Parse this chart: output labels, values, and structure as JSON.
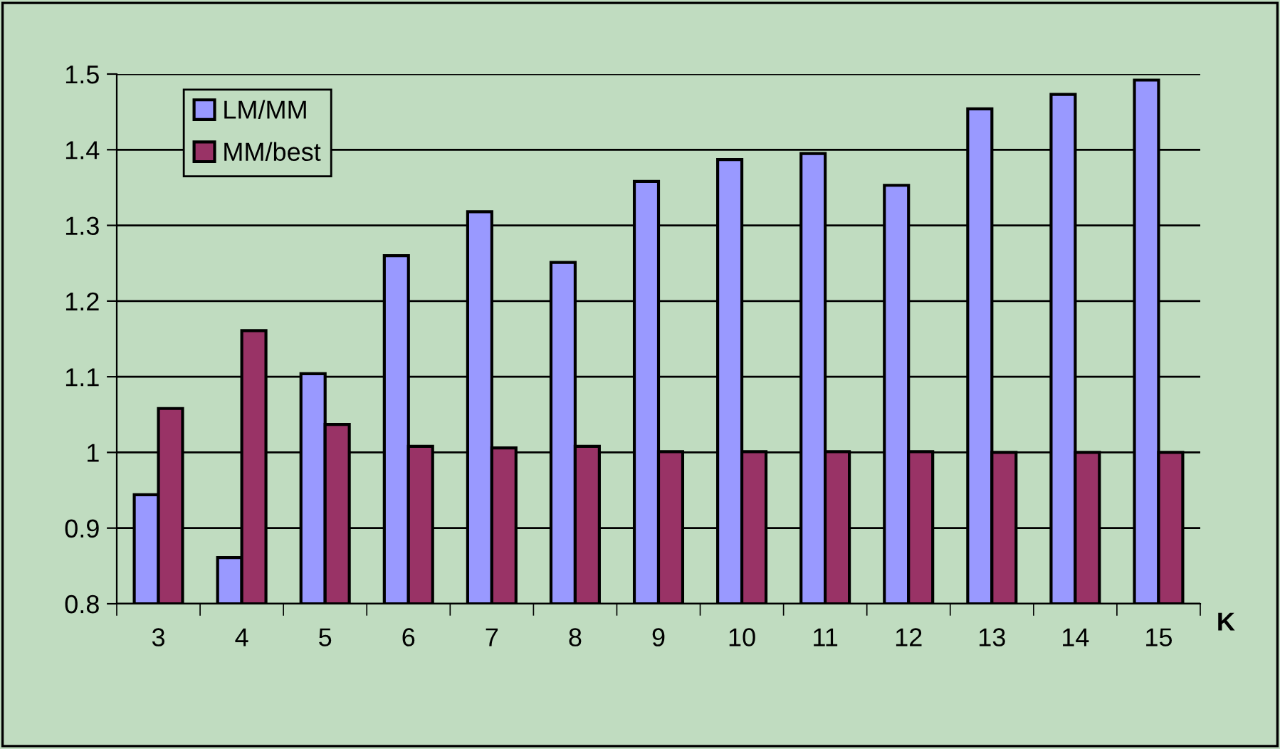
{
  "chart_data": {
    "type": "bar",
    "xlabel": "K",
    "categories": [
      "3",
      "4",
      "5",
      "6",
      "7",
      "8",
      "9",
      "10",
      "11",
      "12",
      "13",
      "14",
      "15"
    ],
    "series": [
      {
        "name": "LM/MM",
        "color": "#9999ff",
        "values": [
          0.944,
          0.861,
          1.104,
          1.26,
          1.318,
          1.251,
          1.358,
          1.387,
          1.395,
          1.353,
          1.454,
          1.473,
          1.492
        ]
      },
      {
        "name": "MM/best",
        "color": "#993366",
        "values": [
          1.058,
          1.161,
          1.037,
          1.008,
          1.006,
          1.008,
          1.001,
          1.001,
          1.001,
          1.001,
          1.0,
          1.0,
          1.0
        ]
      }
    ],
    "ylim": [
      0.8,
      1.5
    ],
    "yticks": [
      0.8,
      0.9,
      1,
      1.1,
      1.2,
      1.3,
      1.4,
      1.5
    ],
    "grid": "y",
    "legend": "top left"
  }
}
